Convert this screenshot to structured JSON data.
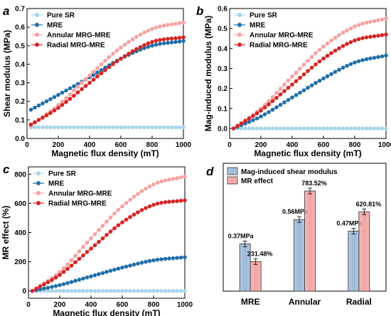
{
  "colors": {
    "pure_sr": "#a7d4ea",
    "mre": "#1f6fa8",
    "annular": "#f5a3a3",
    "radial": "#d62424",
    "bar_blue": "#9cb9d8",
    "bar_red": "#f2a3a3"
  },
  "chart_data": [
    {
      "panel": "a",
      "type": "line",
      "xlabel": "Magnetic flux density (mT)",
      "ylabel": "Shear modulus (MPa)",
      "xlim": [
        0,
        1000
      ],
      "ylim": [
        0,
        0.7
      ],
      "xticks": [
        0,
        200,
        400,
        600,
        800,
        1000
      ],
      "yticks": [
        0.0,
        0.1,
        0.2,
        0.3,
        0.4,
        0.5,
        0.6,
        0.7
      ],
      "legend_position": "top-left",
      "series": [
        {
          "name": "Pure SR",
          "color_key": "pure_sr",
          "x": [
            25,
            200,
            400,
            600,
            800,
            1000
          ],
          "y": [
            0.06,
            0.06,
            0.06,
            0.06,
            0.06,
            0.06
          ]
        },
        {
          "name": "MRE",
          "color_key": "mre",
          "x": [
            25,
            200,
            400,
            600,
            800,
            1000
          ],
          "y": [
            0.155,
            0.235,
            0.33,
            0.43,
            0.5,
            0.525
          ]
        },
        {
          "name": "Annular MRG-MRE",
          "color_key": "annular",
          "x": [
            25,
            200,
            400,
            600,
            800,
            1000
          ],
          "y": [
            0.07,
            0.18,
            0.34,
            0.49,
            0.59,
            0.625
          ]
        },
        {
          "name": "Radial MRG-MRE",
          "color_key": "radial",
          "x": [
            25,
            200,
            400,
            600,
            800,
            1000
          ],
          "y": [
            0.075,
            0.165,
            0.3,
            0.43,
            0.52,
            0.545
          ]
        }
      ]
    },
    {
      "panel": "b",
      "type": "line",
      "xlabel": "Magnetic flux density (mT)",
      "ylabel": "Mag-induced modulus (MPa)",
      "xlim": [
        0,
        1000
      ],
      "ylim": [
        -0.05,
        0.6
      ],
      "xticks": [
        0,
        200,
        400,
        600,
        800,
        1000
      ],
      "yticks": [
        0.0,
        0.1,
        0.2,
        0.3,
        0.4,
        0.5,
        0.6
      ],
      "legend_position": "top-left",
      "series": [
        {
          "name": "Pure SR",
          "color_key": "pure_sr",
          "x": [
            25,
            200,
            400,
            600,
            800,
            1000
          ],
          "y": [
            0.0,
            0.0,
            0.0,
            0.0,
            0.0,
            0.0
          ]
        },
        {
          "name": "MRE",
          "color_key": "mre",
          "x": [
            25,
            200,
            400,
            600,
            800,
            1000
          ],
          "y": [
            0.0,
            0.06,
            0.155,
            0.25,
            0.33,
            0.365
          ]
        },
        {
          "name": "Annular MRG-MRE",
          "color_key": "annular",
          "x": [
            25,
            200,
            400,
            600,
            800,
            1000
          ],
          "y": [
            0.0,
            0.1,
            0.26,
            0.41,
            0.51,
            0.55
          ]
        },
        {
          "name": "Radial MRG-MRE",
          "color_key": "radial",
          "x": [
            25,
            200,
            400,
            600,
            800,
            1000
          ],
          "y": [
            0.0,
            0.09,
            0.22,
            0.35,
            0.44,
            0.47
          ]
        }
      ]
    },
    {
      "panel": "c",
      "type": "line",
      "xlabel": "Magnetic flux density (mT)",
      "ylabel": "MR effect (%)",
      "xlim": [
        0,
        1000
      ],
      "ylim": [
        -50,
        850
      ],
      "xticks": [
        0,
        200,
        400,
        600,
        800,
        1000
      ],
      "yticks": [
        0,
        200,
        400,
        600,
        800
      ],
      "legend_position": "top-left",
      "series": [
        {
          "name": "Pure SR",
          "color_key": "pure_sr",
          "x": [
            25,
            200,
            400,
            600,
            800,
            1000
          ],
          "y": [
            0,
            0,
            0,
            0,
            0,
            0
          ]
        },
        {
          "name": "MRE",
          "color_key": "mre",
          "x": [
            25,
            200,
            400,
            600,
            800,
            1000
          ],
          "y": [
            0,
            40,
            100,
            160,
            210,
            231
          ]
        },
        {
          "name": "Annular MRG-MRE",
          "color_key": "annular",
          "x": [
            25,
            200,
            400,
            600,
            800,
            1000
          ],
          "y": [
            0,
            130,
            360,
            580,
            730,
            784
          ]
        },
        {
          "name": "Radial MRG-MRE",
          "color_key": "radial",
          "x": [
            25,
            200,
            400,
            600,
            800,
            1000
          ],
          "y": [
            0,
            110,
            290,
            470,
            590,
            621
          ]
        }
      ]
    },
    {
      "panel": "d",
      "type": "bar",
      "categories": [
        "MRE",
        "Annular",
        "Radial"
      ],
      "series": [
        {
          "name": "Mag-induced shear modulus",
          "color_key": "bar_blue",
          "values": [
            0.37,
            0.56,
            0.47
          ],
          "labels": [
            "0.37MPa",
            "0.56MPa",
            "0.47MPa"
          ]
        },
        {
          "name": "MR effect",
          "color_key": "bar_red",
          "values": [
            231.48,
            783.52,
            620.81
          ],
          "labels": [
            "231.48%",
            "783.52%",
            "620.81%"
          ]
        }
      ],
      "legend_position": "top-left"
    }
  ]
}
